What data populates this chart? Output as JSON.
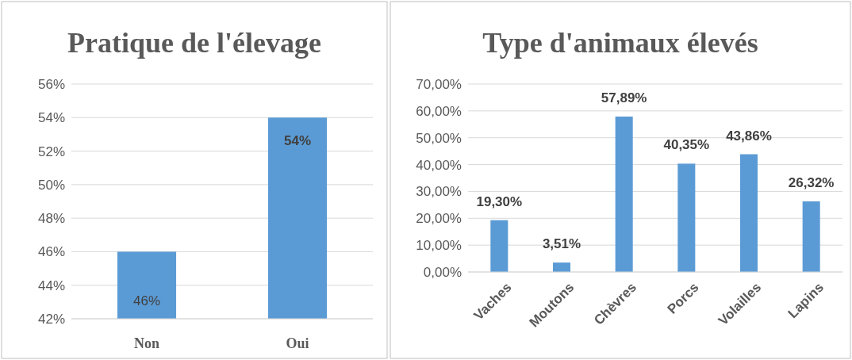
{
  "chart_data": [
    {
      "type": "bar",
      "title": "Pratique de l'élevage",
      "categories": [
        "Non",
        "Oui"
      ],
      "values": [
        46,
        54
      ],
      "value_labels": [
        "46%",
        "54%"
      ],
      "color": "#5b9bd5",
      "ylim": [
        42,
        56
      ],
      "yticks": [
        {
          "value": 42,
          "label": "42%"
        },
        {
          "value": 44,
          "label": "44%"
        },
        {
          "value": 46,
          "label": "46%"
        },
        {
          "value": 48,
          "label": "48%"
        },
        {
          "value": 50,
          "label": "50%"
        },
        {
          "value": 52,
          "label": "52%"
        },
        {
          "value": 54,
          "label": "54%"
        },
        {
          "value": 56,
          "label": "56%"
        }
      ],
      "grid": "y"
    },
    {
      "type": "bar",
      "title": "Type d'animaux élevés",
      "categories": [
        "Vaches",
        "Moutons",
        "Chèvres",
        "Porcs",
        "Volailles",
        "Lapins"
      ],
      "values": [
        19.3,
        3.51,
        57.89,
        40.35,
        43.86,
        26.32
      ],
      "value_labels": [
        "19,30%",
        "3,51%",
        "57,89%",
        "40,35%",
        "43,86%",
        "26,32%"
      ],
      "color": "#5b9bd5",
      "ylim": [
        0,
        70
      ],
      "yticks": [
        {
          "value": 0,
          "label": "0,00%"
        },
        {
          "value": 10,
          "label": "10,00%"
        },
        {
          "value": 20,
          "label": "20,00%"
        },
        {
          "value": 30,
          "label": "30,00%"
        },
        {
          "value": 40,
          "label": "40,00%"
        },
        {
          "value": 50,
          "label": "50,00%"
        },
        {
          "value": 60,
          "label": "60,00%"
        },
        {
          "value": 70,
          "label": "70,00%"
        }
      ],
      "grid": "y"
    }
  ]
}
